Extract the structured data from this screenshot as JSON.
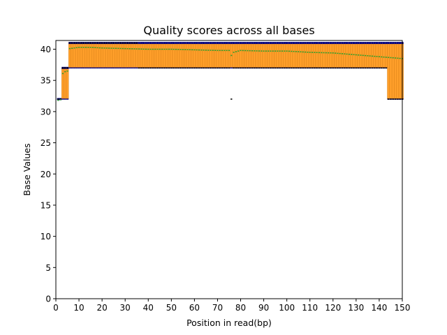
{
  "chart_data": {
    "type": "box",
    "title": "Quality scores across all bases",
    "xlabel": "Position in read(bp)",
    "ylabel": "Base Values",
    "xlim": [
      0,
      150
    ],
    "ylim": [
      0,
      41.4
    ],
    "xticks": [
      0,
      10,
      20,
      30,
      40,
      50,
      60,
      70,
      80,
      90,
      100,
      110,
      120,
      130,
      140,
      150
    ],
    "yticks": [
      0,
      5,
      10,
      15,
      20,
      25,
      30,
      35,
      40
    ],
    "grid": false,
    "colors": {
      "box": "#ff9f2a",
      "whisker": "#000080",
      "median": "#000000",
      "mean": "#2ca02c",
      "axis": "#000000"
    },
    "positions": {
      "start": 1,
      "end": 150
    },
    "median_line": [
      [
        1,
        32
      ],
      [
        3,
        32
      ],
      [
        3,
        37
      ],
      [
        6,
        37
      ],
      [
        6,
        41
      ],
      [
        36,
        41
      ],
      [
        36,
        37
      ],
      [
        76,
        37
      ],
      [
        76,
        32
      ],
      [
        77,
        37
      ],
      [
        144,
        37
      ],
      [
        144,
        32
      ],
      [
        150,
        32
      ]
    ],
    "mean_line": [
      [
        1,
        31.8
      ],
      [
        2,
        31.9
      ],
      [
        3,
        36.1
      ],
      [
        4,
        36.4
      ],
      [
        5,
        36.5
      ],
      [
        6,
        40.1
      ],
      [
        10,
        40.3
      ],
      [
        15,
        40.3
      ],
      [
        20,
        40.2
      ],
      [
        30,
        40.1
      ],
      [
        40,
        40.0
      ],
      [
        50,
        40.0
      ],
      [
        60,
        39.9
      ],
      [
        70,
        39.8
      ],
      [
        75,
        39.8
      ],
      [
        76,
        39.0
      ],
      [
        77,
        39.5
      ],
      [
        80,
        39.8
      ],
      [
        90,
        39.7
      ],
      [
        100,
        39.7
      ],
      [
        110,
        39.5
      ],
      [
        120,
        39.4
      ],
      [
        130,
        39.1
      ],
      [
        140,
        38.8
      ],
      [
        150,
        38.5
      ]
    ],
    "box_ranges": [
      {
        "from": 1,
        "to": 3,
        "q1": 32,
        "q3": 32,
        "lower": 32,
        "upper": 32
      },
      {
        "from": 3,
        "to": 6,
        "q1": 32,
        "q3": 37,
        "lower": 32,
        "upper": 37
      },
      {
        "from": 6,
        "to": 36,
        "q1": 37,
        "q3": 41,
        "lower": 37,
        "upper": 41
      },
      {
        "from": 36,
        "to": 150,
        "q1": 37,
        "q3": 41,
        "lower": 37,
        "upper": 41
      },
      {
        "from": 144,
        "to": 150,
        "q1": 32,
        "q3": 41,
        "lower": 32,
        "upper": 41
      }
    ]
  }
}
